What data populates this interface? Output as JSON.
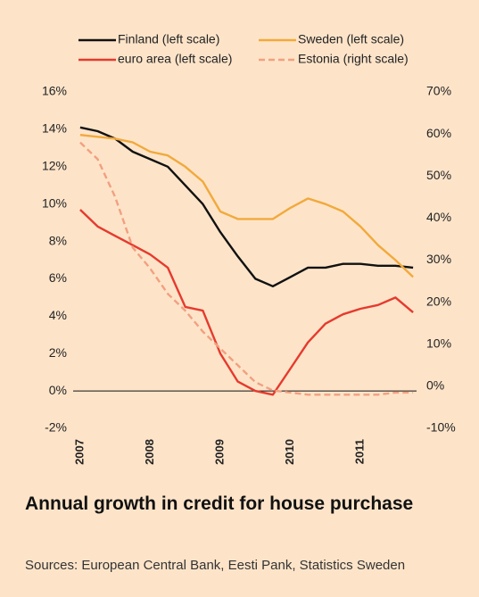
{
  "chart_data": {
    "type": "line",
    "title": "Annual growth in credit for house purchase",
    "source": "Sources: European Central Bank, Eesti Pank, Statistics Sweden",
    "x": [
      2007,
      2007.25,
      2007.5,
      2007.75,
      2008,
      2008.25,
      2008.5,
      2008.75,
      2009,
      2009.25,
      2009.5,
      2009.75,
      2010,
      2010.25,
      2010.5,
      2010.75,
      2011,
      2011.25,
      2011.5,
      2011.75
    ],
    "xlim": [
      2006.9,
      2011.8
    ],
    "xticks": [
      2007,
      2008,
      2009,
      2010,
      2011
    ],
    "ylim": [
      -2,
      16
    ],
    "yticks": [
      {
        "value": -2,
        "label": "-2%"
      },
      {
        "value": 0,
        "label": "0%"
      },
      {
        "value": 2,
        "label": "2%"
      },
      {
        "value": 4,
        "label": "4%"
      },
      {
        "value": 6,
        "label": "6%"
      },
      {
        "value": 8,
        "label": "8%"
      },
      {
        "value": 10,
        "label": "10%"
      },
      {
        "value": 12,
        "label": "12%"
      },
      {
        "value": 14,
        "label": "14%"
      },
      {
        "value": 16,
        "label": "16%"
      }
    ],
    "y2lim": [
      -10,
      70
    ],
    "y2ticks": [
      {
        "value": -10,
        "label": "-10%"
      },
      {
        "value": 0,
        "label": "0%"
      },
      {
        "value": 10,
        "label": "10%"
      },
      {
        "value": 20,
        "label": "20%"
      },
      {
        "value": 30,
        "label": "30%"
      },
      {
        "value": 40,
        "label": "40%"
      },
      {
        "value": 50,
        "label": "50%"
      },
      {
        "value": 60,
        "label": "60%"
      },
      {
        "value": 70,
        "label": "70%"
      }
    ],
    "series": [
      {
        "name": "Finland (left scale)",
        "color": "#111111",
        "values": [
          14.1,
          13.9,
          13.5,
          12.8,
          12.4,
          12.0,
          11.0,
          10.0,
          8.5,
          7.2,
          6.0,
          5.6,
          6.1,
          6.6,
          6.6,
          6.8,
          6.8,
          6.7,
          6.7,
          6.6
        ]
      },
      {
        "name": "Sweden (left scale)",
        "color": "#f2a93b",
        "values": [
          13.7,
          13.6,
          13.5,
          13.3,
          12.8,
          12.6,
          12.0,
          11.2,
          9.6,
          9.2,
          9.2,
          9.2,
          9.8,
          10.3,
          10.0,
          9.6,
          8.8,
          7.8,
          7.0,
          6.1
        ]
      },
      {
        "name": "euro area (left scale)",
        "color": "#e63a2e",
        "values": [
          9.7,
          8.8,
          8.3,
          7.8,
          7.3,
          6.6,
          4.5,
          4.3,
          2.0,
          0.5,
          0.0,
          -0.2,
          1.2,
          2.6,
          3.6,
          4.1,
          4.4,
          4.6,
          5.0,
          4.2
        ]
      },
      {
        "name": "Estonia (right scale)",
        "color": "#f2a080",
        "axis": "y2",
        "dashed": true,
        "values": [
          58,
          54,
          45,
          33,
          28,
          22,
          18,
          13,
          9,
          5,
          1,
          -1,
          -1.5,
          -2,
          -2,
          -2,
          -2,
          -2,
          -1.5,
          -1.5
        ]
      }
    ]
  }
}
